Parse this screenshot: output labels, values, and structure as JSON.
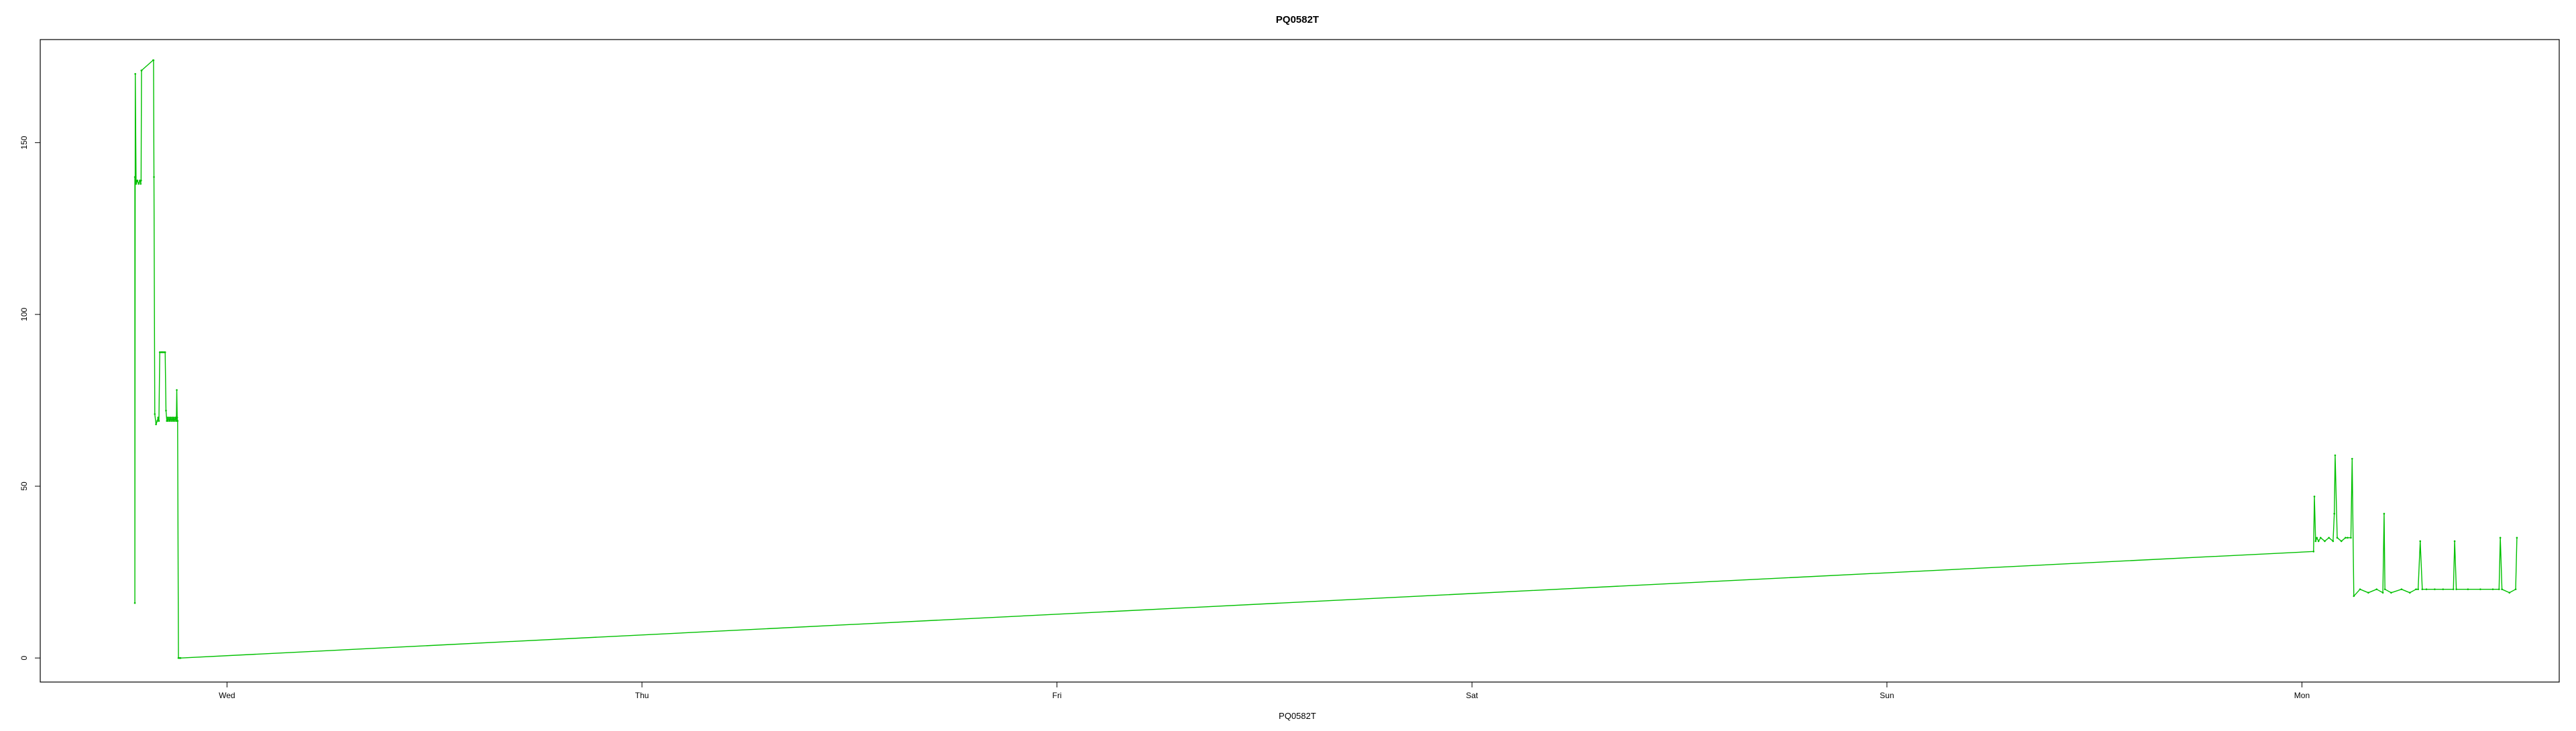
{
  "chart_data": {
    "type": "line",
    "title": "PQ0582T",
    "xlabel": "PQ0582T",
    "ylabel": "",
    "x_unit": "days since Tuesday 00:00",
    "xlim": [
      0.55,
      6.62
    ],
    "ylim": [
      -7,
      180
    ],
    "x_ticks": [
      {
        "value": 1,
        "label": "Wed"
      },
      {
        "value": 2,
        "label": "Thu"
      },
      {
        "value": 3,
        "label": "Fri"
      },
      {
        "value": 4,
        "label": "Sat"
      },
      {
        "value": 5,
        "label": "Sun"
      },
      {
        "value": 6,
        "label": "Mon"
      }
    ],
    "y_ticks": [
      0,
      50,
      100,
      150
    ],
    "grid": false,
    "color": "#00c000",
    "series": [
      {
        "name": "",
        "x": [
          0.778,
          0.778,
          0.779,
          0.781,
          0.784,
          0.787,
          0.79,
          0.792,
          0.793,
          0.794,
          0.794,
          0.822,
          0.823,
          0.824,
          0.826,
          0.829,
          0.832,
          0.834,
          0.836,
          0.838,
          0.841,
          0.843,
          0.845,
          0.848,
          0.851,
          0.853,
          0.855,
          0.856,
          0.858,
          0.86,
          0.862,
          0.864,
          0.866,
          0.868,
          0.87,
          0.872,
          0.874,
          0.876,
          0.878,
          0.879,
          0.88,
          0.881,
          0.883,
          0.886,
          0.888,
          6.028,
          6.03,
          6.033,
          6.036,
          6.04,
          6.045,
          6.055,
          6.065,
          6.075,
          6.078,
          6.08,
          6.085,
          6.095,
          6.105,
          6.11,
          6.118,
          6.121,
          6.125,
          6.14,
          6.16,
          6.18,
          6.195,
          6.198,
          6.2,
          6.215,
          6.24,
          6.26,
          6.275,
          6.28,
          6.285,
          6.29,
          6.3,
          6.32,
          6.34,
          6.365,
          6.368,
          6.372,
          6.4,
          6.43,
          6.46,
          6.475,
          6.478,
          6.482,
          6.5,
          6.515,
          6.518
        ],
        "y": [
          140,
          16,
          170,
          138,
          139,
          138,
          139,
          138,
          139,
          171,
          171,
          174,
          174,
          140,
          71,
          68,
          69,
          70,
          69,
          89,
          89,
          89,
          89,
          89,
          89,
          72,
          69,
          70,
          69,
          70,
          69,
          70,
          69,
          70,
          69,
          70,
          69,
          70,
          69,
          78,
          70,
          69,
          0,
          0,
          0,
          31,
          47,
          34,
          35,
          34,
          35,
          34,
          35,
          34,
          42,
          59,
          35,
          34,
          35,
          35,
          35,
          58,
          18,
          20,
          19,
          20,
          19,
          42,
          20,
          19,
          20,
          19,
          20,
          20,
          34,
          20,
          20,
          20,
          20,
          20,
          34,
          20,
          20,
          20,
          20,
          20,
          35,
          20,
          19,
          20,
          35
        ]
      }
    ]
  }
}
